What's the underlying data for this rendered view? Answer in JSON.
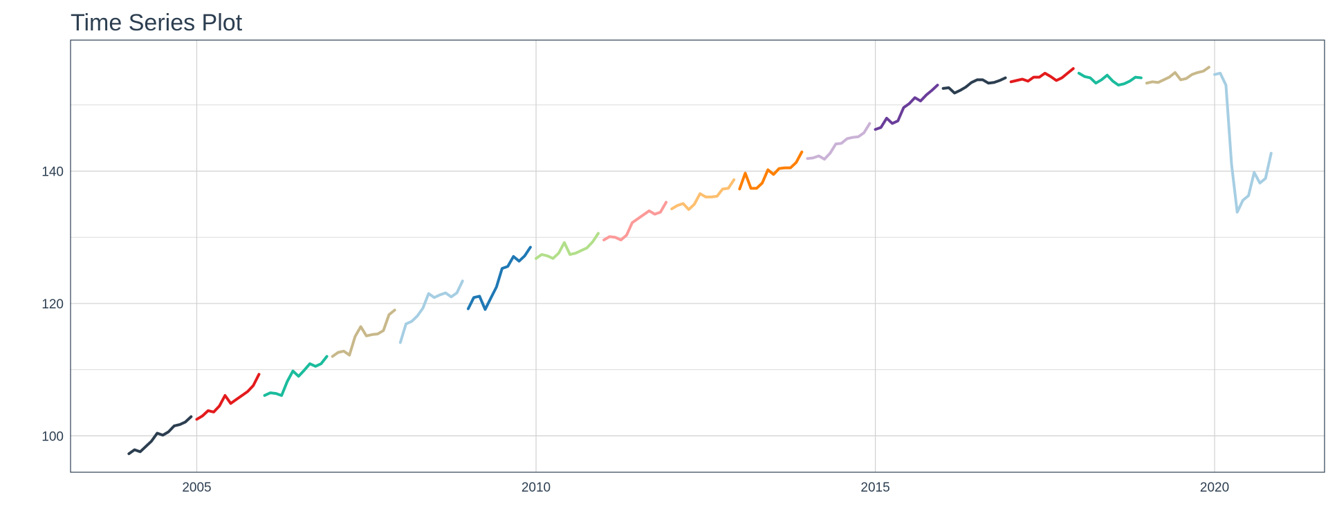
{
  "chart_data": {
    "type": "line",
    "title": "Time Series Plot",
    "xlim": [
      2003.14,
      2021.62
    ],
    "xticks": [
      2005,
      2010,
      2015,
      2020
    ],
    "ylim": [
      94.5,
      159.8
    ],
    "yticks": [
      100,
      120,
      140
    ],
    "yminor": [
      110,
      130,
      150
    ],
    "grid": true,
    "series": [
      {
        "color": "#2c3e50",
        "x": [
          2004,
          2004.083,
          2004.167,
          2004.25,
          2004.333,
          2004.417,
          2004.5,
          2004.583,
          2004.667,
          2004.75,
          2004.833,
          2004.917
        ],
        "values": [
          97.3,
          97.9,
          97.6,
          98.4,
          99.2,
          100.4,
          100.1,
          100.6,
          101.5,
          101.7,
          102.1,
          102.9
        ]
      },
      {
        "color": "#e31a1c",
        "x": [
          2005,
          2005.083,
          2005.167,
          2005.25,
          2005.333,
          2005.417,
          2005.5,
          2005.583,
          2005.667,
          2005.75,
          2005.833,
          2005.917
        ],
        "values": [
          102.5,
          103.0,
          103.8,
          103.6,
          104.5,
          106.1,
          104.9,
          105.5,
          106.1,
          106.7,
          107.6,
          109.3
        ]
      },
      {
        "color": "#1abc9c",
        "x": [
          2006,
          2006.083,
          2006.167,
          2006.25,
          2006.333,
          2006.417,
          2006.5,
          2006.583,
          2006.667,
          2006.75,
          2006.833,
          2006.917
        ],
        "values": [
          106.1,
          106.5,
          106.4,
          106.1,
          108.2,
          109.8,
          109.0,
          109.9,
          110.9,
          110.5,
          110.9,
          112.0
        ]
      },
      {
        "color": "#c8b88a",
        "x": [
          2007,
          2007.083,
          2007.167,
          2007.25,
          2007.333,
          2007.417,
          2007.5,
          2007.583,
          2007.667,
          2007.75,
          2007.833,
          2007.917
        ],
        "values": [
          112.0,
          112.6,
          112.8,
          112.2,
          115.0,
          116.5,
          115.1,
          115.3,
          115.4,
          115.9,
          118.3,
          119.0
        ]
      },
      {
        "color": "#a6cee3",
        "x": [
          2008,
          2008.083,
          2008.167,
          2008.25,
          2008.333,
          2008.417,
          2008.5,
          2008.583,
          2008.667,
          2008.75,
          2008.833,
          2008.917
        ],
        "values": [
          114.1,
          116.9,
          117.3,
          118.1,
          119.3,
          121.5,
          120.9,
          121.3,
          121.6,
          121.0,
          121.6,
          123.4
        ]
      },
      {
        "color": "#1f78b4",
        "x": [
          2009,
          2009.083,
          2009.167,
          2009.25,
          2009.333,
          2009.417,
          2009.5,
          2009.583,
          2009.667,
          2009.75,
          2009.833,
          2009.917
        ],
        "values": [
          119.2,
          120.9,
          121.1,
          119.1,
          120.8,
          122.5,
          125.3,
          125.6,
          127.1,
          126.4,
          127.2,
          128.5
        ]
      },
      {
        "color": "#b2df8a",
        "x": [
          2010,
          2010.083,
          2010.167,
          2010.25,
          2010.333,
          2010.417,
          2010.5,
          2010.583,
          2010.667,
          2010.75,
          2010.833,
          2010.917
        ],
        "values": [
          126.8,
          127.4,
          127.2,
          126.8,
          127.6,
          129.2,
          127.4,
          127.6,
          128.0,
          128.4,
          129.3,
          130.6
        ]
      },
      {
        "color": "#fb9a99",
        "x": [
          2011,
          2011.083,
          2011.167,
          2011.25,
          2011.333,
          2011.417,
          2011.5,
          2011.583,
          2011.667,
          2011.75,
          2011.833,
          2011.917
        ],
        "values": [
          129.6,
          130.1,
          130.0,
          129.6,
          130.3,
          132.2,
          132.8,
          133.4,
          134.0,
          133.5,
          133.8,
          135.3
        ]
      },
      {
        "color": "#fdbf6f",
        "x": [
          2012,
          2012.083,
          2012.167,
          2012.25,
          2012.333,
          2012.417,
          2012.5,
          2012.583,
          2012.667,
          2012.75,
          2012.833,
          2012.917
        ],
        "values": [
          134.3,
          134.8,
          135.1,
          134.2,
          135.0,
          136.6,
          136.1,
          136.1,
          136.2,
          137.3,
          137.4,
          138.7
        ]
      },
      {
        "color": "#ff7f00",
        "x": [
          2013,
          2013.083,
          2013.167,
          2013.25,
          2013.333,
          2013.417,
          2013.5,
          2013.583,
          2013.667,
          2013.75,
          2013.833,
          2013.917
        ],
        "values": [
          137.3,
          139.7,
          137.4,
          137.4,
          138.2,
          140.2,
          139.5,
          140.4,
          140.5,
          140.5,
          141.3,
          142.9
        ]
      },
      {
        "color": "#cab2d6",
        "x": [
          2014,
          2014.083,
          2014.167,
          2014.25,
          2014.333,
          2014.417,
          2014.5,
          2014.583,
          2014.667,
          2014.75,
          2014.833,
          2014.917
        ],
        "values": [
          141.9,
          142.0,
          142.3,
          141.8,
          142.7,
          144.1,
          144.2,
          144.9,
          145.1,
          145.2,
          145.8,
          147.2
        ]
      },
      {
        "color": "#6a3d9a",
        "x": [
          2015,
          2015.083,
          2015.167,
          2015.25,
          2015.333,
          2015.417,
          2015.5,
          2015.583,
          2015.667,
          2015.75,
          2015.833,
          2015.917
        ],
        "values": [
          146.3,
          146.6,
          148.0,
          147.2,
          147.6,
          149.6,
          150.2,
          151.1,
          150.6,
          151.5,
          152.2,
          153.0
        ]
      },
      {
        "color": "#2c3e50",
        "x": [
          2016,
          2016.083,
          2016.167,
          2016.25,
          2016.333,
          2016.417,
          2016.5,
          2016.583,
          2016.667,
          2016.75,
          2016.833,
          2016.917
        ],
        "values": [
          152.5,
          152.6,
          151.8,
          152.2,
          152.7,
          153.4,
          153.8,
          153.8,
          153.3,
          153.4,
          153.7,
          154.1
        ]
      },
      {
        "color": "#e31a1c",
        "x": [
          2017,
          2017.083,
          2017.167,
          2017.25,
          2017.333,
          2017.417,
          2017.5,
          2017.583,
          2017.667,
          2017.75,
          2017.833,
          2017.917
        ],
        "values": [
          153.5,
          153.7,
          153.9,
          153.6,
          154.2,
          154.2,
          154.8,
          154.3,
          153.7,
          154.1,
          154.8,
          155.5
        ]
      },
      {
        "color": "#1abc9c",
        "x": [
          2018,
          2018.083,
          2018.167,
          2018.25,
          2018.333,
          2018.417,
          2018.5,
          2018.583,
          2018.667,
          2018.75,
          2018.833,
          2018.917
        ],
        "values": [
          154.8,
          154.3,
          154.1,
          153.3,
          153.8,
          154.5,
          153.6,
          153.0,
          153.2,
          153.6,
          154.2,
          154.1
        ]
      },
      {
        "color": "#c8b88a",
        "x": [
          2019,
          2019.083,
          2019.167,
          2019.25,
          2019.333,
          2019.417,
          2019.5,
          2019.583,
          2019.667,
          2019.75,
          2019.833,
          2019.917
        ],
        "values": [
          153.3,
          153.5,
          153.4,
          153.8,
          154.2,
          154.9,
          153.8,
          154.0,
          154.6,
          154.9,
          155.1,
          155.7
        ]
      },
      {
        "color": "#a6cee3",
        "x": [
          2020,
          2020.083,
          2020.167,
          2020.25,
          2020.333,
          2020.417,
          2020.5,
          2020.583,
          2020.667,
          2020.75,
          2020.833
        ],
        "values": [
          154.6,
          154.8,
          153.0,
          141.0,
          133.8,
          135.6,
          136.3,
          139.8,
          138.2,
          138.9,
          142.7
        ]
      }
    ]
  }
}
